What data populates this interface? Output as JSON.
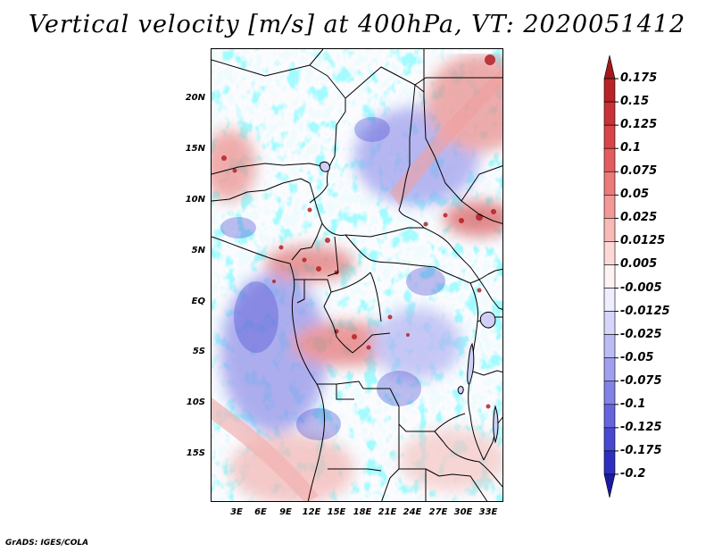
{
  "title": "Vertical velocity [m/s] at 400hPa, VT: 2020051412",
  "lat_labels": [
    "20N",
    "15N",
    "10N",
    "5N",
    "EQ",
    "5S",
    "10S",
    "15S"
  ],
  "lon_labels": [
    "3E",
    "6E",
    "9E",
    "12E",
    "15E",
    "18E",
    "21E",
    "24E",
    "27E",
    "30E",
    "33E"
  ],
  "colorbar": {
    "labels": [
      "0.175",
      "0.15",
      "0.125",
      "0.1",
      "0.075",
      "0.05",
      "0.025",
      "0.0125",
      "0.005",
      "-0.005",
      "-0.0125",
      "-0.025",
      "-0.05",
      "-0.075",
      "-0.1",
      "-0.125",
      "-0.175",
      "-0.2"
    ],
    "colors": [
      "#a3181a",
      "#b82327",
      "#c93237",
      "#d84549",
      "#e35d5e",
      "#ec7a79",
      "#f29897",
      "#f8b9b7",
      "#fcd9d7",
      "#fff3f2",
      "#eeeeff",
      "#d6d6fb",
      "#bcbcf5",
      "#a0a0ee",
      "#8383e6",
      "#6565dd",
      "#4848d1",
      "#2e2ec1",
      "#1a1aa6"
    ]
  },
  "map_region": {
    "lon_range": [
      0,
      35
    ],
    "lat_range": [
      -20,
      24
    ],
    "field": "Vertical velocity",
    "units": "m/s",
    "level": "400hPa"
  },
  "credit": "GrADS: IGES/COLA"
}
